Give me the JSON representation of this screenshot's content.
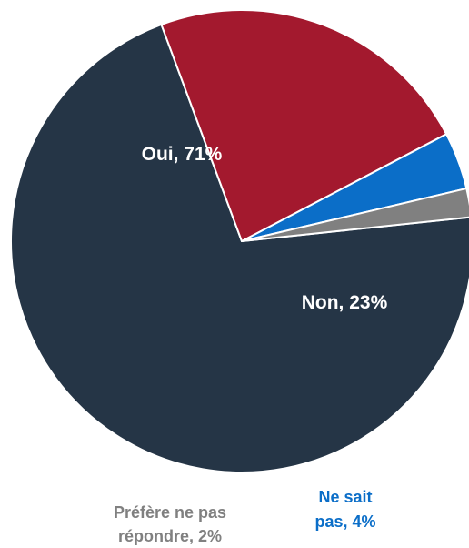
{
  "chart_data": {
    "type": "pie",
    "slices": [
      {
        "category": "Oui",
        "value": 71,
        "label_line1": "Oui, 71%",
        "label_line2": "",
        "color": "#253546",
        "label_color": "#ffffff"
      },
      {
        "category": "Non",
        "value": 23,
        "label_line1": "Non, 23%",
        "label_line2": "",
        "color": "#a3192e",
        "label_color": "#ffffff"
      },
      {
        "category": "Ne sait pas",
        "value": 4,
        "label_line1": "Ne sait",
        "label_line2": "pas, 4%",
        "color": "#0b6ec8",
        "label_color": "#0b6ec8"
      },
      {
        "category": "Préfère ne pas répondre",
        "value": 2,
        "label_line1": "Préfère ne pas",
        "label_line2": "répondre, 2%",
        "color": "#808080",
        "label_color": "#808080"
      }
    ],
    "start_angle_deg": 84,
    "direction": "clockwise",
    "slice_border_color": "#ffffff"
  }
}
